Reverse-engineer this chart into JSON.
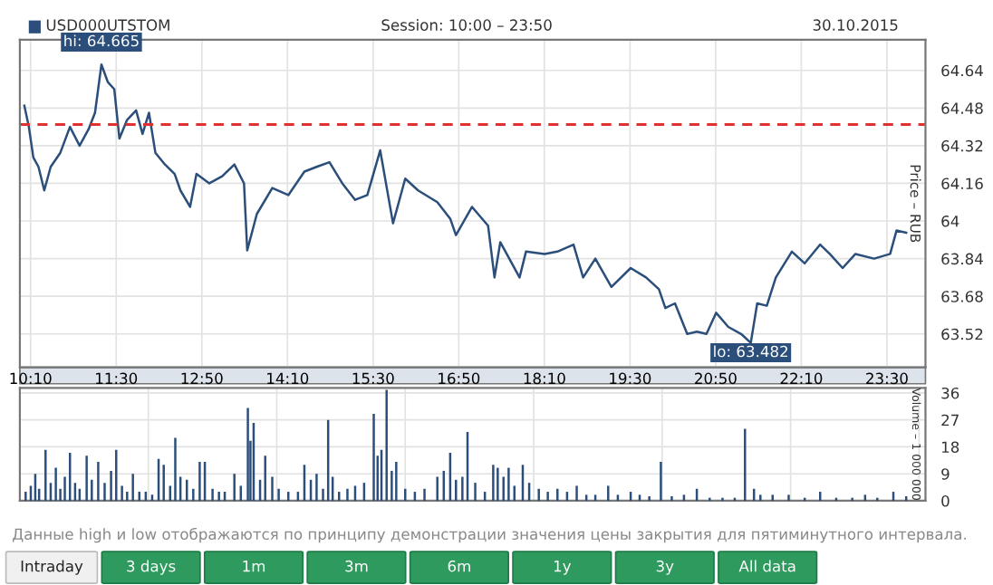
{
  "chart_data": [
    {
      "type": "line",
      "title": "USD000UTSTOM",
      "subtitle": "Session: 10:00 – 23:50",
      "ylabel": "Price – RUB",
      "annotations": [
        "30.10.2015",
        {
          "text": "hi: 64.665",
          "x": 11.27,
          "y": 64.665
        },
        {
          "text": "lo: 63.482",
          "x": 21.38,
          "y": 63.482
        }
      ],
      "series": [
        {
          "color": "#2b4f7a",
          "x": [
            10.07,
            10.14,
            10.21,
            10.29,
            10.38,
            10.48,
            10.63,
            10.78,
            10.93,
            11.07,
            11.17,
            11.27,
            11.37,
            11.47,
            11.55,
            11.67,
            11.81,
            11.91,
            12.01,
            12.11,
            12.26,
            12.41,
            12.5,
            12.65,
            12.75,
            12.95,
            13.15,
            13.34,
            13.49,
            13.54,
            13.69,
            13.93,
            14.18,
            14.43,
            14.62,
            14.82,
            15.02,
            15.22,
            15.41,
            15.61,
            15.81,
            16.0,
            16.2,
            16.5,
            16.7,
            16.79,
            17.04,
            17.29,
            17.39,
            17.48,
            17.78,
            17.88,
            18.17,
            18.37,
            18.62,
            18.77,
            18.96,
            19.21,
            19.51,
            19.75,
            19.95,
            20.05,
            20.2,
            20.39,
            20.54,
            20.69,
            20.84,
            21.03,
            21.23,
            21.38,
            21.48,
            21.63,
            21.77,
            22.02,
            22.22,
            22.46,
            22.61,
            22.81,
            23.01,
            23.3,
            23.55,
            23.65,
            23.8
          ],
          "values": [
            64.49,
            64.4,
            64.27,
            64.23,
            64.13,
            64.23,
            64.29,
            64.4,
            64.32,
            64.39,
            64.46,
            64.665,
            64.59,
            64.56,
            64.35,
            64.43,
            64.47,
            64.37,
            64.46,
            64.29,
            64.24,
            64.2,
            64.13,
            64.06,
            64.2,
            64.16,
            64.19,
            64.24,
            64.16,
            63.875,
            64.03,
            64.14,
            64.11,
            64.21,
            64.23,
            64.25,
            64.16,
            64.09,
            64.11,
            64.3,
            63.99,
            64.18,
            64.13,
            64.08,
            64.01,
            63.94,
            64.06,
            63.98,
            63.76,
            63.91,
            63.76,
            63.87,
            63.86,
            63.87,
            63.9,
            63.76,
            63.84,
            63.72,
            63.8,
            63.76,
            63.71,
            63.63,
            63.65,
            63.52,
            63.53,
            63.52,
            63.61,
            63.55,
            63.52,
            63.482,
            63.65,
            63.64,
            63.76,
            63.87,
            63.82,
            63.9,
            63.86,
            63.8,
            63.86,
            63.84,
            63.86,
            63.96,
            63.95
          ]
        }
      ],
      "ref_lines": [
        {
          "axis": "y",
          "value": 64.41,
          "color": "#e03030",
          "line_style": "dashed"
        }
      ],
      "xlim": [
        10.0,
        24.1
      ],
      "ylim": [
        63.378,
        64.77
      ],
      "yticks": [
        63.52,
        63.68,
        63.84,
        64,
        64.16,
        64.32,
        64.48,
        64.64
      ],
      "xticks": [
        {
          "value": 10.1667,
          "label": "10:10"
        },
        {
          "value": 11.5,
          "label": "11:30"
        },
        {
          "value": 12.8333,
          "label": "12:50"
        },
        {
          "value": 14.1667,
          "label": "14:10"
        },
        {
          "value": 15.5,
          "label": "15:30"
        },
        {
          "value": 16.8333,
          "label": "16:50"
        },
        {
          "value": 18.1667,
          "label": "18:10"
        },
        {
          "value": 19.5,
          "label": "19:30"
        },
        {
          "value": 20.8333,
          "label": "20:50"
        },
        {
          "value": 22.1667,
          "label": "22:10"
        },
        {
          "value": 23.5,
          "label": "23:30"
        }
      ],
      "grid": true
    },
    {
      "type": "bar",
      "ylabel": "Volume – 1 000 000",
      "tick_labels": "y",
      "grid": true,
      "annotations": [
        "Данные high и low отображаются по принципу демонстрации значения цены закрытия для пятиминутного интервала.",
        "Intraday",
        "3 days",
        "1m",
        "3m",
        "6m",
        "1y",
        "3y",
        "All data"
      ],
      "series": [
        {
          "color": "#2b4f7a",
          "x": [
            10.09,
            10.17,
            10.24,
            10.3,
            10.4,
            10.48,
            10.56,
            10.63,
            10.7,
            10.78,
            10.86,
            10.93,
            11.04,
            11.12,
            11.22,
            11.32,
            11.42,
            11.5,
            11.59,
            11.67,
            11.76,
            11.86,
            11.96,
            12.06,
            12.16,
            12.24,
            12.34,
            12.42,
            12.5,
            12.6,
            12.7,
            12.8,
            12.88,
            13.0,
            13.1,
            13.19,
            13.34,
            13.44,
            13.55,
            13.59,
            13.64,
            13.74,
            13.82,
            13.93,
            14.03,
            14.18,
            14.33,
            14.43,
            14.53,
            14.62,
            14.72,
            14.8,
            14.87,
            14.97,
            15.1,
            15.22,
            15.36,
            15.51,
            15.57,
            15.63,
            15.71,
            15.79,
            15.86,
            16.0,
            16.15,
            16.3,
            16.5,
            16.6,
            16.7,
            16.79,
            16.89,
            16.97,
            17.09,
            17.24,
            17.37,
            17.44,
            17.53,
            17.61,
            17.7,
            17.83,
            17.93,
            18.08,
            18.22,
            18.37,
            18.52,
            18.67,
            18.82,
            18.96,
            19.16,
            19.31,
            19.51,
            19.65,
            19.8,
            19.98,
            20.15,
            20.34,
            20.54,
            20.74,
            20.94,
            21.13,
            21.29,
            21.43,
            21.53,
            21.72,
            21.97,
            22.22,
            22.46,
            22.71,
            22.96,
            23.16,
            23.35,
            23.6,
            23.8
          ],
          "values": [
            3,
            5,
            9,
            4,
            17,
            6,
            11,
            4,
            8,
            16,
            6,
            4,
            15,
            7,
            13,
            6,
            10,
            17,
            5,
            3,
            9,
            3,
            3,
            2,
            14,
            12,
            5,
            21,
            8,
            7,
            4,
            13,
            13,
            4,
            3,
            3,
            9,
            5,
            31,
            20,
            26,
            7,
            15,
            8,
            4,
            3,
            3,
            12,
            7,
            9,
            4,
            27,
            8,
            3,
            4,
            5,
            6,
            29,
            15,
            17,
            37,
            10,
            13,
            4,
            3,
            4,
            8,
            10,
            16,
            7,
            8,
            23,
            6,
            3,
            12,
            11,
            8,
            11,
            5,
            12,
            6,
            4,
            3,
            4,
            3,
            5,
            2,
            2,
            5,
            2,
            3,
            2,
            1.5,
            13,
            1.5,
            2,
            4,
            1,
            1,
            1,
            24,
            4,
            2,
            2,
            2,
            1,
            3,
            1,
            1,
            2,
            1,
            3,
            1.5
          ]
        }
      ],
      "xlim": [
        10.0,
        24.1
      ],
      "ylim": [
        0,
        37.7
      ],
      "yticks": [
        0,
        9,
        18,
        27,
        36
      ]
    }
  ]
}
